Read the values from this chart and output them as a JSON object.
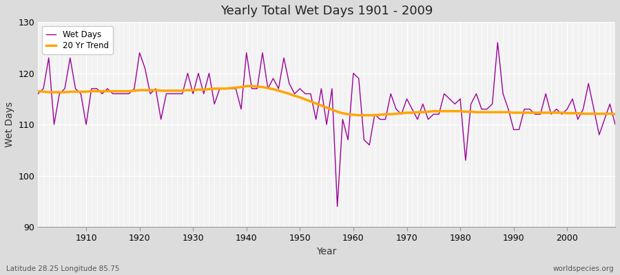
{
  "title": "Yearly Total Wet Days 1901 - 2009",
  "xlabel": "Year",
  "ylabel": "Wet Days",
  "subtitle_left": "Latitude 28.25 Longitude 85.75",
  "subtitle_right": "worldspecies.org",
  "ylim": [
    90,
    130
  ],
  "yticks": [
    90,
    100,
    110,
    120,
    130
  ],
  "line_color": "#990099",
  "trend_color": "#FFA500",
  "fig_bg_color": "#DCDCDC",
  "plot_bg_color": "#F2F2F2",
  "years": [
    1901,
    1902,
    1903,
    1904,
    1905,
    1906,
    1907,
    1908,
    1909,
    1910,
    1911,
    1912,
    1913,
    1914,
    1915,
    1916,
    1917,
    1918,
    1919,
    1920,
    1921,
    1922,
    1923,
    1924,
    1925,
    1926,
    1927,
    1928,
    1929,
    1930,
    1931,
    1932,
    1933,
    1934,
    1935,
    1936,
    1937,
    1938,
    1939,
    1940,
    1941,
    1942,
    1943,
    1944,
    1945,
    1946,
    1947,
    1948,
    1949,
    1950,
    1951,
    1952,
    1953,
    1954,
    1955,
    1956,
    1957,
    1958,
    1959,
    1960,
    1961,
    1962,
    1963,
    1964,
    1965,
    1966,
    1967,
    1968,
    1969,
    1970,
    1971,
    1972,
    1973,
    1974,
    1975,
    1976,
    1977,
    1978,
    1979,
    1980,
    1981,
    1982,
    1983,
    1984,
    1985,
    1986,
    1987,
    1988,
    1989,
    1990,
    1991,
    1992,
    1993,
    1994,
    1995,
    1996,
    1997,
    1998,
    1999,
    2000,
    2001,
    2002,
    2003,
    2004,
    2005,
    2006,
    2007,
    2008,
    2009
  ],
  "wet_days": [
    116,
    117,
    123,
    110,
    116,
    117,
    123,
    117,
    116,
    110,
    117,
    117,
    116,
    117,
    116,
    116,
    116,
    116,
    117,
    124,
    121,
    116,
    117,
    111,
    116,
    116,
    116,
    116,
    120,
    116,
    120,
    116,
    120,
    114,
    117,
    117,
    117,
    117,
    113,
    124,
    117,
    117,
    124,
    117,
    119,
    117,
    123,
    118,
    116,
    117,
    116,
    116,
    111,
    117,
    110,
    117,
    94,
    111,
    107,
    120,
    119,
    107,
    106,
    112,
    111,
    111,
    116,
    113,
    112,
    115,
    113,
    111,
    114,
    111,
    112,
    112,
    116,
    115,
    114,
    115,
    103,
    114,
    116,
    113,
    113,
    114,
    126,
    116,
    113,
    109,
    109,
    113,
    113,
    112,
    112,
    116,
    112,
    113,
    112,
    113,
    115,
    111,
    113,
    118,
    113,
    108,
    111,
    114,
    110
  ],
  "trend": [
    116.5,
    116.4,
    116.3,
    116.3,
    116.3,
    116.3,
    116.4,
    116.4,
    116.4,
    116.4,
    116.5,
    116.5,
    116.5,
    116.5,
    116.5,
    116.5,
    116.5,
    116.5,
    116.6,
    116.7,
    116.7,
    116.7,
    116.7,
    116.6,
    116.6,
    116.6,
    116.6,
    116.6,
    116.7,
    116.7,
    116.8,
    116.8,
    116.9,
    117.0,
    117.0,
    117.0,
    117.1,
    117.2,
    117.3,
    117.5,
    117.5,
    117.4,
    117.3,
    117.1,
    116.9,
    116.6,
    116.3,
    116.0,
    115.6,
    115.3,
    114.9,
    114.5,
    114.1,
    113.7,
    113.3,
    112.9,
    112.5,
    112.2,
    112.0,
    111.9,
    111.8,
    111.8,
    111.8,
    111.8,
    111.9,
    112.0,
    112.0,
    112.1,
    112.2,
    112.3,
    112.3,
    112.4,
    112.4,
    112.5,
    112.6,
    112.6,
    112.6,
    112.6,
    112.6,
    112.6,
    112.5,
    112.5,
    112.4,
    112.4,
    112.4,
    112.4,
    112.4,
    112.4,
    112.4,
    112.3,
    112.3,
    112.3,
    112.3,
    112.3,
    112.3,
    112.3,
    112.3,
    112.3,
    112.3,
    112.2,
    112.2,
    112.2,
    112.1,
    112.1,
    112.1,
    112.1,
    112.1,
    112.1,
    112.0
  ]
}
